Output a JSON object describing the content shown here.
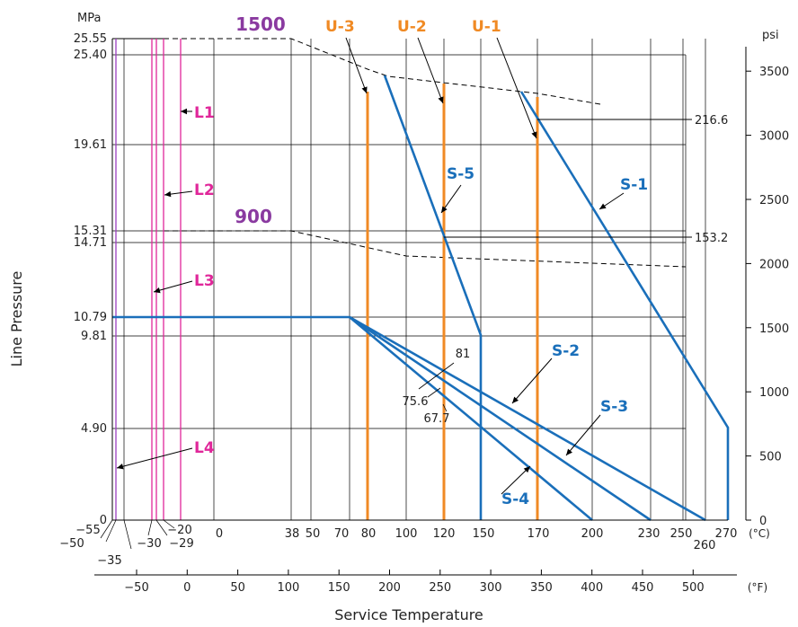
{
  "chart_data": {
    "type": "line",
    "xlabel": "Service Temperature",
    "ylabel": "Line Pressure",
    "units": {
      "y_left": "MPa",
      "y_right": "psi",
      "x_top": "(°C)",
      "x_bottom": "(°F)"
    },
    "colors": {
      "L": "#e0279a",
      "U": "#f08a24",
      "S": "#1a6fba",
      "grid": "#000000",
      "L4": "#9b3fbf",
      "class": "#8a3aa0"
    },
    "xlim_c": [
      -55,
      270
    ],
    "ylim_mpa": [
      0,
      25.55
    ],
    "y_ticks_mpa": [
      "0",
      "4.90",
      "9.81",
      "10.79",
      "14.71",
      "15.31",
      "19.61",
      "25.40",
      "25.55"
    ],
    "y_ticks_psi": [
      "0",
      "500",
      "1000",
      "1500",
      "2000",
      "2500",
      "3000",
      "3500"
    ],
    "x_ticks_c": [
      "−55",
      "−50",
      "−35",
      "−30",
      "−29",
      "−20",
      "0",
      "38",
      "50",
      "70",
      "80",
      "100",
      "120",
      "150",
      "170",
      "200",
      "230",
      "250",
      "260",
      "270"
    ],
    "x_ticks_f": [
      "−50",
      "0",
      "50",
      "100",
      "150",
      "200",
      "250",
      "300",
      "350",
      "400",
      "450",
      "500"
    ],
    "class_labels": [
      "1500",
      "900"
    ],
    "series": [
      {
        "name": "L1",
        "x": [
          -20,
          -20
        ],
        "y": [
          0,
          25.55
        ]
      },
      {
        "name": "L2",
        "x": [
          -29,
          -29
        ],
        "y": [
          0,
          25.55
        ]
      },
      {
        "name": "L3",
        "x": [
          -30,
          -30
        ],
        "y": [
          0,
          25.55
        ]
      },
      {
        "name": "L4",
        "x": [
          -55,
          -55
        ],
        "y": [
          0,
          25.55
        ]
      },
      {
        "name": "U-1",
        "x": [
          170,
          170
        ],
        "y": [
          0,
          21.1
        ]
      },
      {
        "name": "U-2",
        "x": [
          120,
          120
        ],
        "y": [
          0,
          22.0
        ]
      },
      {
        "name": "U-3",
        "x": [
          80,
          80
        ],
        "y": [
          0,
          22.4
        ]
      },
      {
        "name": "S-1",
        "x": [
          222,
          270,
          270
        ],
        "y": [
          21.86,
          4.9,
          0
        ]
      },
      {
        "name": "S-2",
        "x": [
          70,
          260
        ],
        "y": [
          10.79,
          0
        ]
      },
      {
        "name": "S-3",
        "x": [
          70,
          230
        ],
        "y": [
          10.79,
          0
        ]
      },
      {
        "name": "S-4",
        "x": [
          70,
          200
        ],
        "y": [
          10.79,
          0
        ]
      },
      {
        "name": "S-5",
        "x": [
          90,
          150,
          150
        ],
        "y": [
          22.7,
          9.81,
          0
        ]
      }
    ],
    "rating_1500": {
      "x": [
        -20,
        38,
        80,
        170,
        210
      ],
      "y": [
        25.55,
        25.55,
        22.8,
        22.1,
        20.8
      ]
    },
    "rating_900": {
      "x": [
        -20,
        38,
        100,
        200,
        270
      ],
      "y": [
        15.31,
        15.31,
        13.75,
        12.9,
        12.5
      ]
    },
    "s_max": {
      "x": [
        -55,
        70
      ],
      "y": [
        10.79,
        10.79
      ]
    },
    "annotations": [
      {
        "text": "216.6",
        "x": 175,
        "y": 21.66
      },
      {
        "text": "153.2",
        "x": 120,
        "y": 15.32
      },
      {
        "text": "81"
      },
      {
        "text": "75.6"
      },
      {
        "text": "67.7"
      }
    ],
    "grid": true
  }
}
